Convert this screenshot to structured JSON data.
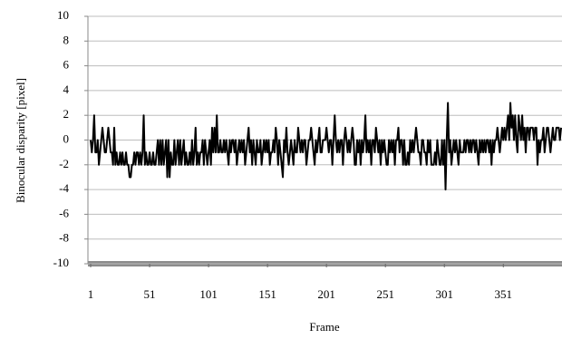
{
  "chart_data": {
    "type": "line",
    "x_label": "Frame",
    "y_label": "Binocular disparity [pixel]",
    "xlim": [
      1,
      400
    ],
    "xticks": [
      1,
      51,
      101,
      151,
      201,
      251,
      301,
      351
    ],
    "ylim": [
      -10,
      10
    ],
    "yticks": [
      -10,
      -8,
      -6,
      -4,
      -2,
      0,
      2,
      4,
      6,
      8,
      10
    ],
    "grid": true,
    "x": [
      1,
      2,
      3,
      4,
      5,
      6,
      7,
      8,
      9,
      10,
      11,
      12,
      13,
      14,
      15,
      16,
      17,
      18,
      19,
      20,
      21,
      22,
      23,
      24,
      25,
      26,
      27,
      28,
      29,
      30,
      31,
      32,
      33,
      34,
      35,
      36,
      37,
      38,
      39,
      40,
      41,
      42,
      43,
      44,
      45,
      46,
      47,
      48,
      49,
      50,
      51,
      52,
      53,
      54,
      55,
      56,
      57,
      58,
      59,
      60,
      61,
      62,
      63,
      64,
      65,
      66,
      67,
      68,
      69,
      70,
      71,
      72,
      73,
      74,
      75,
      76,
      77,
      78,
      79,
      80,
      81,
      82,
      83,
      84,
      85,
      86,
      87,
      88,
      89,
      90,
      91,
      92,
      93,
      94,
      95,
      96,
      97,
      98,
      99,
      100,
      101,
      102,
      103,
      104,
      105,
      106,
      107,
      108,
      109,
      110,
      111,
      112,
      113,
      114,
      115,
      116,
      117,
      118,
      119,
      120,
      121,
      122,
      123,
      124,
      125,
      126,
      127,
      128,
      129,
      130,
      131,
      132,
      133,
      134,
      135,
      136,
      137,
      138,
      139,
      140,
      141,
      142,
      143,
      144,
      145,
      146,
      147,
      148,
      149,
      150,
      151,
      152,
      153,
      154,
      155,
      156,
      157,
      158,
      159,
      160,
      161,
      162,
      163,
      164,
      165,
      166,
      167,
      168,
      169,
      170,
      171,
      172,
      173,
      174,
      175,
      176,
      177,
      178,
      179,
      180,
      181,
      182,
      183,
      184,
      185,
      186,
      187,
      188,
      189,
      190,
      191,
      192,
      193,
      194,
      195,
      196,
      197,
      198,
      199,
      200,
      201,
      202,
      203,
      204,
      205,
      206,
      207,
      208,
      209,
      210,
      211,
      212,
      213,
      214,
      215,
      216,
      217,
      218,
      219,
      220,
      221,
      222,
      223,
      224,
      225,
      226,
      227,
      228,
      229,
      230,
      231,
      232,
      233,
      234,
      235,
      236,
      237,
      238,
      239,
      240,
      241,
      242,
      243,
      244,
      245,
      246,
      247,
      248,
      249,
      250,
      251,
      252,
      253,
      254,
      255,
      256,
      257,
      258,
      259,
      260,
      261,
      262,
      263,
      264,
      265,
      266,
      267,
      268,
      269,
      270,
      271,
      272,
      273,
      274,
      275,
      276,
      277,
      278,
      279,
      280,
      281,
      282,
      283,
      284,
      285,
      286,
      287,
      288,
      289,
      290,
      291,
      292,
      293,
      294,
      295,
      296,
      297,
      298,
      299,
      300,
      301,
      302,
      303,
      304,
      305,
      306,
      307,
      308,
      309,
      310,
      311,
      312,
      313,
      314,
      315,
      316,
      317,
      318,
      319,
      320,
      321,
      322,
      323,
      324,
      325,
      326,
      327,
      328,
      329,
      330,
      331,
      332,
      333,
      334,
      335,
      336,
      337,
      338,
      339,
      340,
      341,
      342,
      343,
      344,
      345,
      346,
      347,
      348,
      349,
      350,
      351,
      352,
      353,
      354,
      355,
      356,
      357,
      358,
      359,
      360,
      361,
      362,
      363,
      364,
      365,
      366,
      367,
      368,
      369,
      370,
      371,
      372,
      373,
      374,
      375,
      376,
      377,
      378,
      379,
      380,
      381,
      382,
      383,
      384,
      385,
      386,
      387,
      388,
      389,
      390,
      391,
      392,
      393,
      394,
      395,
      396,
      397,
      398,
      399,
      400
    ],
    "values": [
      0,
      -1,
      0,
      2,
      -1,
      -1,
      0,
      -2,
      -1,
      0,
      1,
      0,
      -1,
      -1,
      0,
      1,
      0,
      -1,
      -1,
      -2,
      1,
      -2,
      -1,
      -2,
      -2,
      -1,
      -2,
      -1,
      -2,
      -2,
      -1,
      -2,
      -2,
      -3,
      -3,
      -2,
      -2,
      -1,
      -2,
      -1,
      -1,
      -2,
      -1,
      -2,
      -1,
      2,
      -2,
      -1,
      -2,
      -2,
      -1,
      -2,
      -2,
      -1,
      -2,
      -2,
      -1,
      0,
      -2,
      0,
      -2,
      0,
      -2,
      -1,
      0,
      -3,
      0,
      -3,
      -1,
      -2,
      -2,
      0,
      -2,
      -1,
      0,
      -2,
      0,
      -2,
      -1,
      0,
      -2,
      -1,
      -2,
      -2,
      -1,
      -2,
      0,
      -2,
      -1,
      1,
      -2,
      -1,
      -2,
      -1,
      -1,
      0,
      -2,
      0,
      -1,
      -2,
      -1,
      0,
      -2,
      1,
      -1,
      1,
      -1,
      2,
      -1,
      -1,
      0,
      -1,
      -1,
      0,
      -1,
      0,
      -1,
      -2,
      0,
      -1,
      0,
      0,
      -1,
      0,
      -2,
      -1,
      0,
      -1,
      0,
      -1,
      0,
      -2,
      -1,
      0,
      1,
      -1,
      0,
      -2,
      0,
      -1,
      -2,
      0,
      -1,
      -1,
      0,
      -2,
      -1,
      0,
      -1,
      0,
      -1,
      0,
      -2,
      -1,
      -1,
      0,
      -1,
      1,
      0,
      -2,
      0,
      -1,
      -2,
      -3,
      0,
      -1,
      1,
      -1,
      -2,
      -1,
      0,
      -1,
      -2,
      0,
      -1,
      -1,
      1,
      0,
      -1,
      0,
      -1,
      0,
      0,
      -2,
      -1,
      0,
      0,
      1,
      0,
      -1,
      -2,
      0,
      -1,
      0,
      1,
      -1,
      -1,
      0,
      0,
      0,
      1,
      0,
      -1,
      0,
      0,
      -2,
      0,
      2,
      0,
      -1,
      0,
      -1,
      0,
      0,
      -2,
      0,
      1,
      0,
      -1,
      0,
      -1,
      0,
      1,
      0,
      -2,
      -2,
      0,
      -1,
      0,
      -2,
      0,
      -1,
      0,
      2,
      -1,
      0,
      -1,
      0,
      -2,
      0,
      0,
      -1,
      1,
      0,
      -1,
      0,
      -2,
      0,
      -1,
      0,
      -1,
      -2,
      -2,
      0,
      -1,
      0,
      -1,
      0,
      -2,
      0,
      0,
      1,
      -1,
      0,
      0,
      -2,
      0,
      -2,
      -2,
      -1,
      -2,
      0,
      -1,
      0,
      -1,
      0,
      1,
      0,
      -1,
      -1,
      -2,
      0,
      0,
      -1,
      -1,
      -2,
      0,
      -1,
      0,
      -2,
      -2,
      -2,
      -1,
      -2,
      0,
      -1,
      -2,
      -2,
      0,
      -2,
      0,
      -4,
      0,
      3,
      -1,
      0,
      -2,
      -1,
      0,
      -1,
      0,
      -1,
      -2,
      0,
      -1,
      -1,
      -1,
      0,
      -1,
      0,
      0,
      -1,
      0,
      -1,
      0,
      0,
      -1,
      0,
      -1,
      -2,
      0,
      -1,
      0,
      -1,
      0,
      -1,
      0,
      0,
      -1,
      0,
      -2,
      0,
      -1,
      0,
      0,
      1,
      0,
      -1,
      0,
      1,
      0,
      1,
      0,
      1,
      2,
      0,
      3,
      1,
      2,
      0,
      2,
      0,
      -1,
      2,
      1,
      0,
      2,
      0,
      1,
      -1,
      1,
      1,
      0,
      1,
      1,
      1,
      0,
      1,
      1,
      -2,
      0,
      -1,
      0,
      0,
      1,
      -1,
      0,
      1,
      1,
      0,
      -1,
      0,
      1,
      0,
      0,
      1,
      1,
      1,
      0,
      1
    ],
    "color": "#000000"
  }
}
